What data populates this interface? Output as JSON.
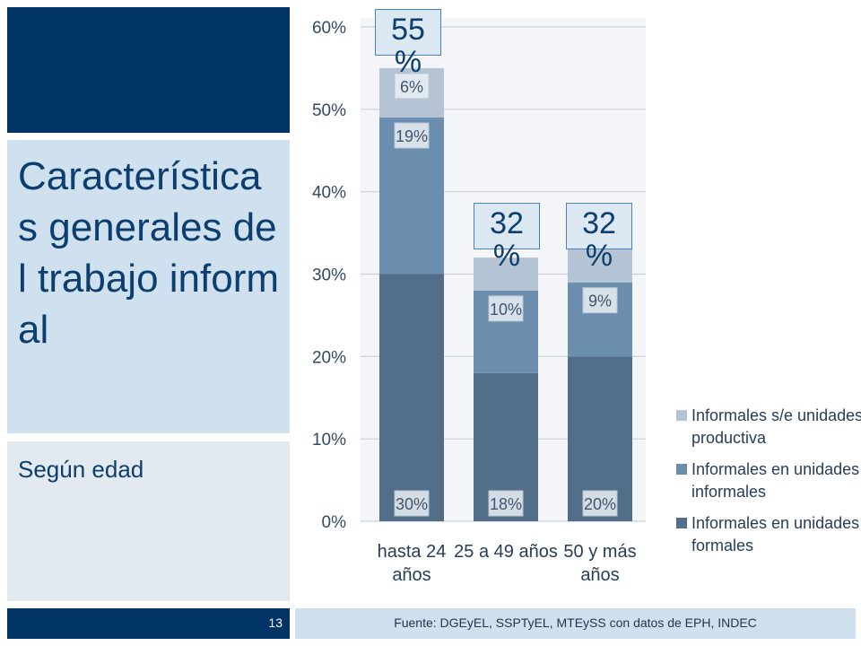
{
  "slide": {
    "title": "Características generales del trabajo informal",
    "subtitle": "Según edad",
    "page_number": "13",
    "source": "Fuente: DGEyEL, SSPTyEL, MTEySS con datos de EPH, INDEC"
  },
  "chart_data": {
    "type": "bar",
    "stacked": true,
    "categories": [
      "hasta 24 años",
      "25 a 49 años",
      "50 y más años"
    ],
    "category_lines": [
      [
        "hasta 24",
        "años"
      ],
      [
        "25 a 49 años"
      ],
      [
        "50 y más",
        "años"
      ]
    ],
    "series": [
      {
        "name": "Informales en unidades formales",
        "values": [
          30,
          18,
          20
        ],
        "labels": [
          "30%",
          "18%",
          "20%"
        ],
        "color": "#536e89"
      },
      {
        "name": "Informales en unidades informales",
        "values": [
          19,
          10,
          9
        ],
        "labels": [
          "19%",
          "10%",
          "9%"
        ],
        "color": "#6c8eae"
      },
      {
        "name": "Informales s/e unidades productiva",
        "values": [
          6,
          4,
          4
        ],
        "labels": [
          "6%",
          "",
          ""
        ],
        "color": "#b4c4d4"
      }
    ],
    "legend_lines": [
      [
        "Informales s/e unidades",
        "productiva"
      ],
      [
        "Informales en unidades",
        "informales"
      ],
      [
        "Informales en unidades",
        "formales"
      ]
    ],
    "totals": [
      "55 %",
      "32 %",
      "32 %"
    ],
    "ylim": [
      0,
      60
    ],
    "yticks": [
      0,
      10,
      20,
      30,
      40,
      50,
      60
    ],
    "ytick_labels": [
      "0%",
      "10%",
      "20%",
      "30%",
      "40%",
      "50%",
      "60%"
    ],
    "grid": true,
    "legend_position": "right"
  }
}
